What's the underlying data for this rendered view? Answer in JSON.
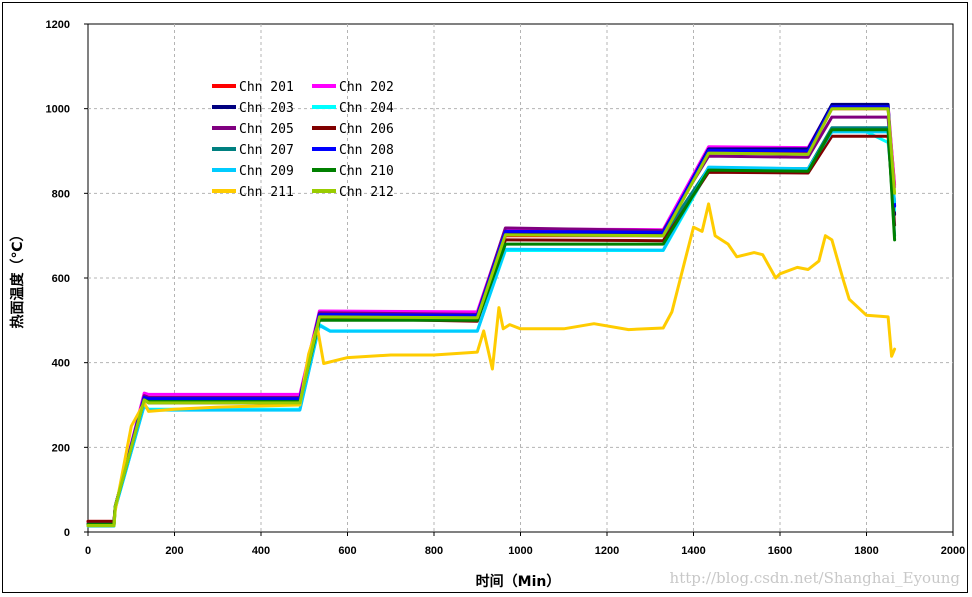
{
  "chart_data": {
    "type": "line",
    "title": "",
    "xlabel": "时间（Min）",
    "ylabel": "热面温度（℃）",
    "xlim": [
      0,
      2000
    ],
    "ylim": [
      0,
      1200
    ],
    "x_ticks": [
      0,
      200,
      400,
      600,
      800,
      1000,
      1200,
      1400,
      1600,
      1800,
      2000
    ],
    "y_ticks": [
      0,
      200,
      400,
      600,
      800,
      1000,
      1200
    ],
    "grid": true,
    "legend_position": "top-left inside",
    "series": [
      {
        "name": "Chn 201",
        "color": "#ff0000",
        "x": [
          0,
          60,
          63,
          130,
          140,
          490,
          535,
          900,
          965,
          1330,
          1435,
          1665,
          1720,
          1850,
          1865
        ],
        "y": [
          25,
          25,
          60,
          320,
          310,
          310,
          510,
          505,
          700,
          700,
          895,
          895,
          1000,
          1000,
          820
        ]
      },
      {
        "name": "Chn 202",
        "color": "#ff00ff",
        "x": [
          0,
          60,
          63,
          130,
          140,
          490,
          535,
          900,
          965,
          1330,
          1435,
          1665,
          1720,
          1850,
          1865
        ],
        "y": [
          15,
          15,
          60,
          328,
          325,
          325,
          522,
          520,
          716,
          714,
          910,
          908,
          1008,
          1008,
          815
        ]
      },
      {
        "name": "Chn 203",
        "color": "#000080",
        "x": [
          0,
          60,
          63,
          130,
          140,
          490,
          535,
          900,
          965,
          1330,
          1435,
          1665,
          1720,
          1850,
          1865
        ],
        "y": [
          18,
          18,
          60,
          318,
          314,
          314,
          515,
          512,
          708,
          706,
          905,
          905,
          1010,
          1010,
          750
        ]
      },
      {
        "name": "Chn 204",
        "color": "#00ffff",
        "x": [
          0,
          60,
          63,
          130,
          140,
          490,
          535,
          560,
          900,
          965,
          1330,
          1435,
          1665,
          1720,
          1800,
          1850,
          1865
        ],
        "y": [
          15,
          15,
          55,
          300,
          290,
          290,
          490,
          475,
          475,
          665,
          665,
          855,
          850,
          950,
          945,
          920,
          760
        ]
      },
      {
        "name": "Chn 205",
        "color": "#800080",
        "x": [
          0,
          60,
          63,
          130,
          140,
          490,
          535,
          900,
          965,
          1330,
          1435,
          1665,
          1720,
          1850,
          1865
        ],
        "y": [
          20,
          20,
          60,
          322,
          318,
          318,
          518,
          514,
          718,
          712,
          888,
          885,
          980,
          980,
          770
        ]
      },
      {
        "name": "Chn 206",
        "color": "#800000",
        "x": [
          0,
          60,
          63,
          130,
          140,
          490,
          535,
          900,
          965,
          1330,
          1435,
          1665,
          1720,
          1850,
          1865
        ],
        "y": [
          25,
          25,
          60,
          312,
          305,
          305,
          505,
          498,
          690,
          688,
          850,
          848,
          935,
          935,
          725
        ]
      },
      {
        "name": "Chn 207",
        "color": "#008080",
        "x": [
          0,
          60,
          63,
          130,
          140,
          490,
          535,
          900,
          965,
          1330,
          1435,
          1665,
          1720,
          1850,
          1865
        ],
        "y": [
          18,
          18,
          60,
          316,
          312,
          312,
          510,
          508,
          702,
          700,
          860,
          858,
          955,
          955,
          700
        ]
      },
      {
        "name": "Chn 208",
        "color": "#0000ff",
        "x": [
          0,
          60,
          63,
          130,
          140,
          490,
          535,
          900,
          965,
          1330,
          1435,
          1665,
          1720,
          1850,
          1865
        ],
        "y": [
          16,
          16,
          60,
          318,
          315,
          315,
          514,
          512,
          710,
          708,
          902,
          900,
          1005,
          1005,
          770
        ]
      },
      {
        "name": "Chn 209",
        "color": "#00ccff",
        "x": [
          0,
          60,
          63,
          130,
          140,
          490,
          535,
          560,
          900,
          965,
          1330,
          1435,
          1665,
          1720,
          1850,
          1865
        ],
        "y": [
          14,
          14,
          55,
          298,
          288,
          288,
          488,
          474,
          474,
          668,
          666,
          862,
          858,
          945,
          945,
          780
        ]
      },
      {
        "name": "Chn 210",
        "color": "#008000",
        "x": [
          0,
          60,
          63,
          130,
          140,
          490,
          535,
          900,
          965,
          1330,
          1435,
          1665,
          1720,
          1850,
          1865
        ],
        "y": [
          18,
          18,
          60,
          312,
          308,
          308,
          500,
          500,
          680,
          680,
          855,
          852,
          950,
          950,
          690
        ]
      },
      {
        "name": "Chn 211",
        "color": "#ffcc00",
        "x": [
          0,
          60,
          63,
          100,
          130,
          140,
          200,
          300,
          490,
          510,
          530,
          545,
          600,
          700,
          800,
          900,
          915,
          935,
          950,
          960,
          975,
          1000,
          1100,
          1170,
          1250,
          1330,
          1350,
          1380,
          1400,
          1420,
          1435,
          1450,
          1480,
          1500,
          1540,
          1560,
          1590,
          1600,
          1640,
          1665,
          1690,
          1705,
          1720,
          1745,
          1760,
          1800,
          1850,
          1858,
          1865
        ],
        "y": [
          15,
          15,
          50,
          250,
          305,
          285,
          290,
          295,
          300,
          420,
          485,
          398,
          412,
          418,
          418,
          425,
          475,
          385,
          530,
          480,
          490,
          480,
          480,
          492,
          478,
          482,
          520,
          640,
          720,
          710,
          775,
          700,
          680,
          650,
          660,
          655,
          600,
          610,
          625,
          620,
          640,
          700,
          690,
          600,
          550,
          512,
          508,
          415,
          432
        ]
      },
      {
        "name": "Chn 212",
        "color": "#99cc00",
        "x": [
          0,
          60,
          63,
          130,
          140,
          490,
          535,
          900,
          965,
          1330,
          1435,
          1665,
          1720,
          1850,
          1865
        ],
        "y": [
          15,
          15,
          60,
          312,
          305,
          305,
          508,
          506,
          702,
          700,
          895,
          892,
          1000,
          1000,
          800
        ]
      }
    ]
  },
  "watermark": "http://blog.csdn.net/Shanghai_Eyoung"
}
